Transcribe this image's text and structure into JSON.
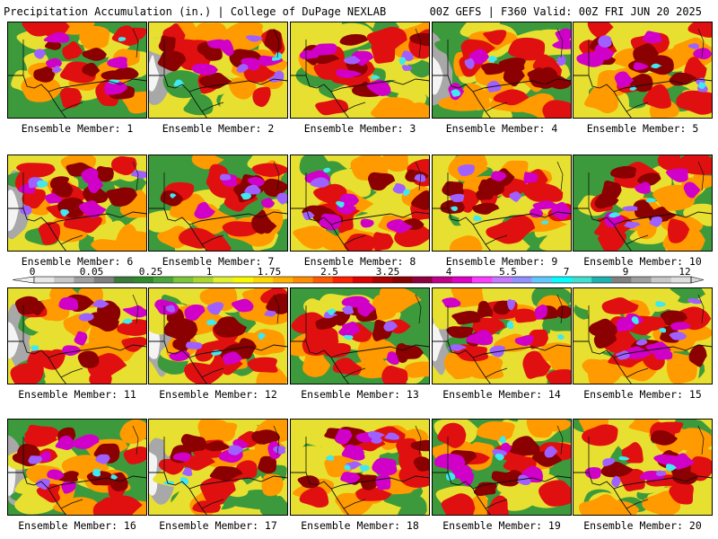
{
  "header": {
    "left_title": "Precipitation Accumulation (in.) | College of DuPage NEXLAB",
    "right_title": "00Z GEFS | F360 Valid: 00Z FRI JUN 20 2025"
  },
  "colorbar": {
    "labels": [
      "0",
      "0.05",
      "0.25",
      "1",
      "1.75",
      "2.5",
      "3.25",
      "4",
      "5.5",
      "7",
      "9",
      "12"
    ],
    "colors": [
      "#e8e8e8",
      "#c8c8c8",
      "#a0a0a0",
      "#808080",
      "#3a7a3a",
      "#2e8b2e",
      "#4aa63a",
      "#7cc43a",
      "#a8d830",
      "#e0f030",
      "#f8f800",
      "#ffd700",
      "#ffb000",
      "#ff8c00",
      "#ff5a00",
      "#ff2000",
      "#e00000",
      "#b00000",
      "#8b0000",
      "#900040",
      "#c0008a",
      "#e000c8",
      "#ff3cff",
      "#c878ff",
      "#9090ff",
      "#60c8ff",
      "#00ffff",
      "#40e0d0",
      "#20b0b0",
      "#808080",
      "#a0a0a0",
      "#c8c8c8",
      "#e0e0e0"
    ]
  },
  "members": [
    "Ensemble Member: 1",
    "Ensemble Member: 2",
    "Ensemble Member: 3",
    "Ensemble Member: 4",
    "Ensemble Member: 5",
    "Ensemble Member: 6",
    "Ensemble Member: 7",
    "Ensemble Member: 8",
    "Ensemble Member: 9",
    "Ensemble Member: 10",
    "Ensemble Member: 11",
    "Ensemble Member: 12",
    "Ensemble Member: 13",
    "Ensemble Member: 14",
    "Ensemble Member: 15",
    "Ensemble Member: 16",
    "Ensemble Member: 17",
    "Ensemble Member: 18",
    "Ensemble Member: 19",
    "Ensemble Member: 20"
  ],
  "palette": {
    "green": "#3c9a3c",
    "yellow": "#e8e030",
    "orange": "#ff9a00",
    "red": "#e01010",
    "darkred": "#8b0000",
    "magenta": "#d000c8",
    "violet": "#a060ff",
    "cyan": "#40e8f0",
    "gray": "#a8a8a8",
    "white": "#f4f4f4"
  }
}
